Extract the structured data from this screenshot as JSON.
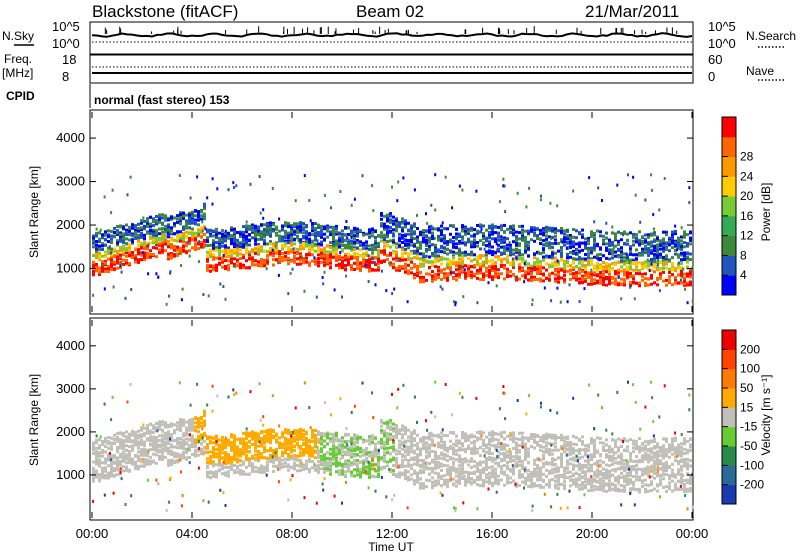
{
  "header": {
    "station": "Blackstone (fitACF)",
    "beam": "Beam 02",
    "date": "21/Mar/2011"
  },
  "chart_data": [
    {
      "type": "line",
      "title": "",
      "left_label": "N.Sky",
      "right_label": "N.Search",
      "left_ticks": [
        "10^5",
        "10^0"
      ],
      "right_ticks": [
        "10^5",
        "10^0"
      ],
      "series": [
        {
          "name": "N.Sky",
          "style": "solid"
        },
        {
          "name": "N.Search",
          "style": "dotted"
        }
      ]
    },
    {
      "type": "line",
      "left_label_lines": [
        "Freq.",
        "[MHz]"
      ],
      "right_label": "Nave",
      "left_ticks": [
        "18",
        "8"
      ],
      "right_ticks": [
        "60",
        "0"
      ],
      "series": [
        {
          "name": "Freq.",
          "style": "solid"
        },
        {
          "name": "Nave",
          "style": "dotted"
        }
      ]
    },
    {
      "type": "text",
      "left_label": "CPID",
      "text": "normal (fast stereo) 153"
    },
    {
      "type": "heatmap",
      "ylabel": "Slant Range [km]",
      "ylim": [
        0,
        4600
      ],
      "yticks": [
        "1000",
        "2000",
        "3000",
        "4000"
      ],
      "colorbar": {
        "label": "Power [dB]",
        "ticks": [
          "4",
          "8",
          "12",
          "16",
          "20",
          "24",
          "28"
        ],
        "colors": [
          "#0000ff",
          "#2255bb",
          "#3a8a3a",
          "#33aa55",
          "#77cc33",
          "#ffcc00",
          "#ff9900",
          "#ff6600",
          "#ff0000"
        ]
      }
    },
    {
      "type": "heatmap",
      "ylabel": "Slant Range [km]",
      "ylim": [
        0,
        4600
      ],
      "yticks": [
        "1000",
        "2000",
        "3000",
        "4000"
      ],
      "colorbar": {
        "label": "Velocity [m s⁻¹]",
        "ticks": [
          "200",
          "100",
          "50",
          "15",
          "-15",
          "-50",
          "-100",
          "-200"
        ],
        "colors": [
          "#1a3ab0",
          "#2a6a9a",
          "#2a8a4a",
          "#66cc33",
          "#c0c0b8",
          "#ffaa00",
          "#ff7a00",
          "#ff4400",
          "#ee0000"
        ]
      }
    }
  ],
  "xaxis": {
    "label": "Time UT",
    "ticks": [
      "00:00",
      "04:00",
      "08:00",
      "12:00",
      "16:00",
      "20:00",
      "00:00"
    ]
  }
}
